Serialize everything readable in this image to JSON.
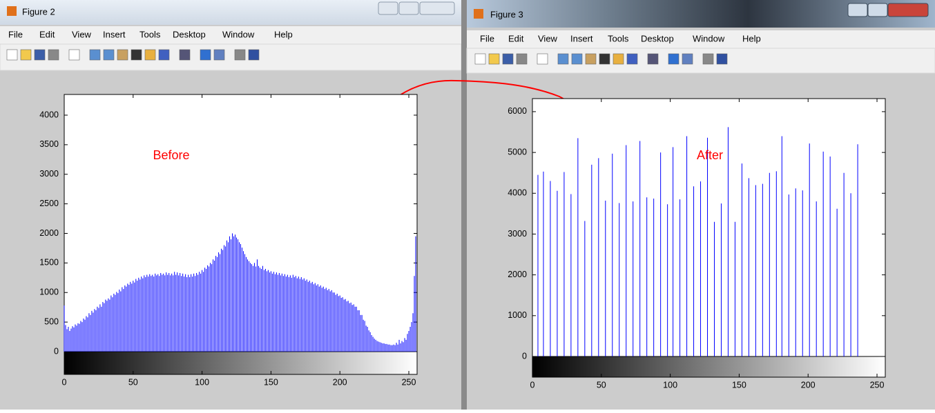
{
  "windows": [
    {
      "title": "Figure 2",
      "menu": [
        "File",
        "Edit",
        "View",
        "Insert",
        "Tools",
        "Desktop",
        "Window",
        "Help"
      ]
    },
    {
      "title": "Figure 3",
      "menu": [
        "File",
        "Edit",
        "View",
        "Insert",
        "Tools",
        "Desktop",
        "Window",
        "Help"
      ]
    }
  ],
  "chart_data": [
    {
      "type": "bar",
      "annotation": "Before",
      "color": "#0000ff",
      "x": [
        0,
        1,
        2,
        3,
        4,
        5,
        6,
        7,
        8,
        9,
        10,
        11,
        12,
        13,
        14,
        15,
        16,
        17,
        18,
        19,
        20,
        21,
        22,
        23,
        24,
        25,
        26,
        27,
        28,
        29,
        30,
        31,
        32,
        33,
        34,
        35,
        36,
        37,
        38,
        39,
        40,
        41,
        42,
        43,
        44,
        45,
        46,
        47,
        48,
        49,
        50,
        51,
        52,
        53,
        54,
        55,
        56,
        57,
        58,
        59,
        60,
        61,
        62,
        63,
        64,
        65,
        66,
        67,
        68,
        69,
        70,
        71,
        72,
        73,
        74,
        75,
        76,
        77,
        78,
        79,
        80,
        81,
        82,
        83,
        84,
        85,
        86,
        87,
        88,
        89,
        90,
        91,
        92,
        93,
        94,
        95,
        96,
        97,
        98,
        99,
        100,
        101,
        102,
        103,
        104,
        105,
        106,
        107,
        108,
        109,
        110,
        111,
        112,
        113,
        114,
        115,
        116,
        117,
        118,
        119,
        120,
        121,
        122,
        123,
        124,
        125,
        126,
        127,
        128,
        129,
        130,
        131,
        132,
        133,
        134,
        135,
        136,
        137,
        138,
        139,
        140,
        141,
        142,
        143,
        144,
        145,
        146,
        147,
        148,
        149,
        150,
        151,
        152,
        153,
        154,
        155,
        156,
        157,
        158,
        159,
        160,
        161,
        162,
        163,
        164,
        165,
        166,
        167,
        168,
        169,
        170,
        171,
        172,
        173,
        174,
        175,
        176,
        177,
        178,
        179,
        180,
        181,
        182,
        183,
        184,
        185,
        186,
        187,
        188,
        189,
        190,
        191,
        192,
        193,
        194,
        195,
        196,
        197,
        198,
        199,
        200,
        201,
        202,
        203,
        204,
        205,
        206,
        207,
        208,
        209,
        210,
        211,
        212,
        213,
        214,
        215,
        216,
        217,
        218,
        219,
        220,
        221,
        222,
        223,
        224,
        225,
        226,
        227,
        228,
        229,
        230,
        231,
        232,
        233,
        234,
        235,
        236,
        237,
        238,
        239,
        240,
        241,
        242,
        243,
        244,
        245,
        246,
        247,
        248,
        249,
        250,
        251,
        252,
        253,
        254,
        255
      ],
      "values": [
        780,
        450,
        380,
        420,
        350,
        390,
        430,
        410,
        460,
        440,
        480,
        470,
        520,
        500,
        560,
        540,
        600,
        580,
        650,
        620,
        690,
        660,
        720,
        700,
        760,
        740,
        800,
        760,
        840,
        820,
        880,
        860,
        900,
        880,
        950,
        920,
        980,
        960,
        1010,
        990,
        1050,
        1020,
        1090,
        1060,
        1120,
        1100,
        1150,
        1130,
        1180,
        1150,
        1200,
        1170,
        1230,
        1200,
        1250,
        1220,
        1270,
        1240,
        1290,
        1260,
        1300,
        1270,
        1310,
        1280,
        1300,
        1270,
        1320,
        1290,
        1310,
        1280,
        1330,
        1300,
        1320,
        1290,
        1340,
        1300,
        1330,
        1290,
        1320,
        1290,
        1350,
        1300,
        1340,
        1290,
        1330,
        1280,
        1320,
        1270,
        1310,
        1260,
        1300,
        1260,
        1310,
        1270,
        1320,
        1280,
        1330,
        1300,
        1350,
        1320,
        1380,
        1350,
        1420,
        1400,
        1460,
        1440,
        1500,
        1480,
        1560,
        1540,
        1620,
        1600,
        1680,
        1650,
        1740,
        1720,
        1800,
        1780,
        1880,
        1850,
        1950,
        1900,
        2000,
        1950,
        1980,
        1930,
        1900,
        1850,
        1820,
        1760,
        1700,
        1650,
        1600,
        1560,
        1530,
        1500,
        1480,
        1450,
        1500,
        1440,
        1560,
        1450,
        1420,
        1400,
        1450,
        1380,
        1400,
        1360,
        1380,
        1340,
        1360,
        1320,
        1350,
        1310,
        1340,
        1300,
        1330,
        1290,
        1320,
        1280,
        1310,
        1270,
        1300,
        1260,
        1290,
        1250,
        1300,
        1260,
        1280,
        1240,
        1270,
        1230,
        1260,
        1220,
        1240,
        1200,
        1220,
        1180,
        1200,
        1160,
        1180,
        1140,
        1160,
        1120,
        1140,
        1100,
        1120,
        1080,
        1100,
        1060,
        1080,
        1040,
        1060,
        1020,
        1040,
        1000,
        1000,
        960,
        980,
        940,
        950,
        910,
        920,
        880,
        890,
        850,
        860,
        820,
        830,
        790,
        800,
        760,
        760,
        700,
        700,
        620,
        620,
        540,
        520,
        440,
        420,
        360,
        330,
        280,
        250,
        220,
        200,
        180,
        170,
        160,
        150,
        140,
        140,
        130,
        130,
        120,
        120,
        110,
        110,
        120,
        110,
        150,
        120,
        200,
        140,
        180,
        160,
        230,
        200,
        300,
        350,
        420,
        500,
        650,
        1280,
        1950
      ],
      "xlim": [
        0,
        256
      ],
      "ylim": [
        0,
        4350
      ],
      "xticks": [
        0,
        50,
        100,
        150,
        200,
        250
      ],
      "yticks": [
        0,
        500,
        1000,
        1500,
        2000,
        2500,
        3000,
        3500,
        4000
      ]
    },
    {
      "type": "bar",
      "annotation": "After",
      "color": "#0000ff",
      "x": [
        4,
        8,
        13,
        18,
        23,
        28,
        33,
        38,
        43,
        48,
        53,
        58,
        63,
        68,
        73,
        78,
        83,
        88,
        93,
        98,
        102,
        107,
        112,
        117,
        122,
        127,
        132,
        137,
        142,
        147,
        152,
        157,
        162,
        167,
        172,
        177,
        181,
        186,
        191,
        196,
        201,
        206,
        211,
        216,
        221,
        226,
        231,
        236
      ],
      "values": [
        4450,
        4530,
        4300,
        4060,
        4520,
        3980,
        5350,
        3320,
        4700,
        4860,
        3820,
        4970,
        3760,
        5180,
        3800,
        5280,
        3900,
        3870,
        5000,
        3730,
        5130,
        3850,
        5400,
        4170,
        4290,
        5360,
        3300,
        3750,
        5620,
        3300,
        4730,
        4370,
        4200,
        4230,
        4500,
        4540,
        5400,
        3970,
        4120,
        4070,
        5220,
        3800,
        5020,
        4900,
        3620,
        4500,
        4000,
        5200
      ],
      "xlim": [
        0,
        256
      ],
      "ylim": [
        0,
        6320
      ],
      "xticks": [
        0,
        50,
        100,
        150,
        200,
        250
      ],
      "yticks": [
        0,
        1000,
        2000,
        3000,
        4000,
        5000,
        6000
      ]
    }
  ]
}
